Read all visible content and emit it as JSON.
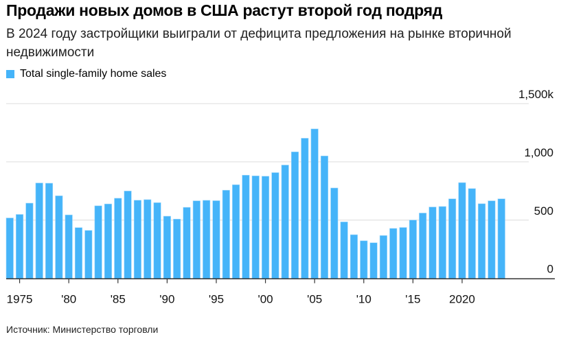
{
  "title": "Продажи новых домов в США растут второй год подряд",
  "subtitle": "В 2024 году застройщики выиграли от дефицита предложения на рынке вторичной недвижимости",
  "source": "Источник: Министерство торговли",
  "chart_data": {
    "type": "bar",
    "legend": [
      "Total single-family home sales"
    ],
    "legend_position": "top-left",
    "color": "#45b4f9",
    "grid": true,
    "ylim": [
      0,
      1500
    ],
    "y_ticks": [
      0,
      500,
      1000,
      1500
    ],
    "y_tick_labels": [
      "0",
      "500",
      "1,000",
      "1,500k"
    ],
    "x_tick_years": [
      1975,
      1980,
      1985,
      1990,
      1995,
      2000,
      2005,
      2010,
      2015,
      2020
    ],
    "x_tick_labels": [
      "1975",
      "'80",
      "'85",
      "'90",
      "'95",
      "'00",
      "'05",
      "'10",
      "'15",
      "2020"
    ],
    "categories": [
      1974,
      1975,
      1976,
      1977,
      1978,
      1979,
      1980,
      1981,
      1982,
      1983,
      1984,
      1985,
      1986,
      1987,
      1988,
      1989,
      1990,
      1991,
      1992,
      1993,
      1994,
      1995,
      1996,
      1997,
      1998,
      1999,
      2000,
      2001,
      2002,
      2003,
      2004,
      2005,
      2006,
      2007,
      2008,
      2009,
      2010,
      2011,
      2012,
      2013,
      2014,
      2015,
      2016,
      2017,
      2018,
      2019,
      2020,
      2021,
      2022,
      2023,
      2024
    ],
    "series": [
      {
        "name": "Total single-family home sales",
        "values": [
          519,
          549,
          646,
          819,
          817,
          709,
          545,
          436,
          412,
          623,
          639,
          688,
          750,
          671,
          676,
          650,
          534,
          509,
          610,
          666,
          670,
          667,
          757,
          804,
          886,
          880,
          877,
          908,
          973,
          1086,
          1203,
          1283,
          1051,
          776,
          485,
          375,
          323,
          306,
          368,
          429,
          437,
          501,
          561,
          613,
          617,
          683,
          822,
          771,
          641,
          666,
          683
        ]
      }
    ]
  }
}
